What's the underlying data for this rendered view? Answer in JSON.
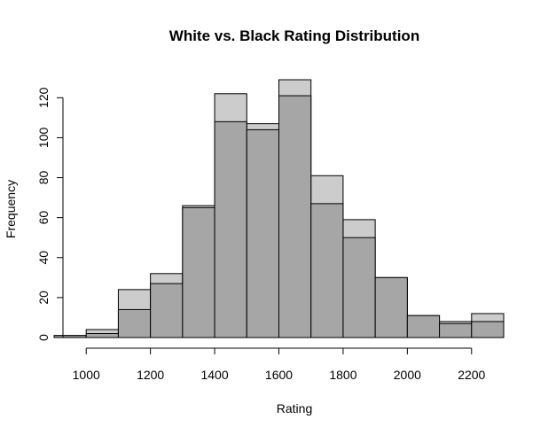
{
  "chart_data": {
    "type": "bar",
    "title": "White vs. Black Rating Distribution",
    "xlabel": "Rating",
    "ylabel": "Frequency",
    "bin_edges": [
      900,
      1000,
      1100,
      1200,
      1300,
      1400,
      1500,
      1600,
      1700,
      1800,
      1900,
      2000,
      2100,
      2200,
      2300
    ],
    "series": [
      {
        "values": [
          1,
          4,
          24,
          32,
          66,
          122,
          107,
          129,
          81,
          59,
          30,
          11,
          8,
          12
        ],
        "color": "#cccccc"
      },
      {
        "values": [
          1,
          2,
          14,
          27,
          65,
          108,
          104,
          121,
          67,
          50,
          30,
          11,
          7,
          8
        ],
        "color": "#a6a6a6"
      }
    ],
    "xlim": [
      900,
      2300
    ],
    "ylim": [
      0,
      129
    ],
    "x_ticks": [
      "1000",
      "1200",
      "1400",
      "1600",
      "1800",
      "2000",
      "2200"
    ],
    "y_ticks": [
      "0",
      "20",
      "40",
      "60",
      "80",
      "100",
      "120"
    ],
    "grid": false
  }
}
